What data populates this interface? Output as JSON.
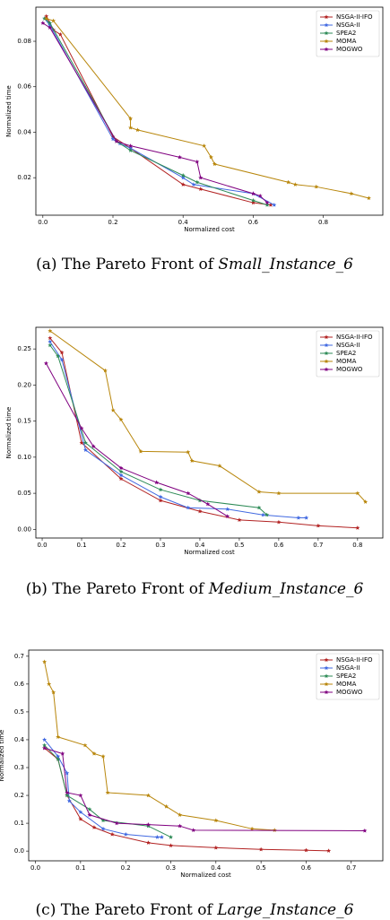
{
  "chart_data": [
    {
      "type": "line",
      "caption_prefix": "(a) The Pareto Front of",
      "caption_instance": "Small_Instance_6",
      "x_label": "Normalized cost",
      "y_label": "Normalized time",
      "legend": "upper right",
      "xlim": [
        -0.02,
        0.97
      ],
      "ylim": [
        0.0035,
        0.095
      ],
      "xticks": [
        {
          "value": 0,
          "label": "0.0"
        },
        0.2,
        0.4,
        0.6,
        0.8
      ],
      "yticks": [
        0.02,
        0.04,
        0.06,
        0.08
      ],
      "series": [
        {
          "name": "NSGA-II-IFO",
          "color": "#b22222",
          "x": [
            0.01,
            0.03,
            0.05,
            0.2,
            0.25,
            0.4,
            0.45,
            0.6,
            0.65
          ],
          "values": [
            0.091,
            0.085,
            0.083,
            0.038,
            0.033,
            0.017,
            0.015,
            0.009,
            0.008
          ]
        },
        {
          "name": "NSGA-II",
          "color": "#4169e1",
          "x": [
            0.005,
            0.02,
            0.2,
            0.22,
            0.25,
            0.4,
            0.43,
            0.6,
            0.66
          ],
          "values": [
            0.09,
            0.087,
            0.037,
            0.035,
            0.033,
            0.02,
            0.017,
            0.013,
            0.008
          ]
        },
        {
          "name": "SPEA2",
          "color": "#2e8b57",
          "x": [
            0.005,
            0.02,
            0.21,
            0.25,
            0.4,
            0.44,
            0.6,
            0.64
          ],
          "values": [
            0.09,
            0.088,
            0.036,
            0.032,
            0.021,
            0.018,
            0.01,
            0.008
          ]
        },
        {
          "name": "MOMA",
          "color": "#b8860b",
          "x": [
            0.01,
            0.03,
            0.25,
            0.25,
            0.27,
            0.46,
            0.48,
            0.49,
            0.7,
            0.72,
            0.78,
            0.88,
            0.93
          ],
          "values": [
            0.09,
            0.089,
            0.046,
            0.042,
            0.041,
            0.034,
            0.029,
            0.026,
            0.018,
            0.017,
            0.016,
            0.013,
            0.011
          ]
        },
        {
          "name": "MOGWO",
          "color": "#800080",
          "x": [
            0.0,
            0.02,
            0.21,
            0.25,
            0.39,
            0.44,
            0.45,
            0.6,
            0.62,
            0.64
          ],
          "values": [
            0.088,
            0.086,
            0.036,
            0.034,
            0.029,
            0.027,
            0.02,
            0.013,
            0.012,
            0.009
          ]
        }
      ]
    },
    {
      "type": "line",
      "caption_prefix": "(b) The Pareto Front of",
      "caption_instance": "Medium_Instance_6",
      "x_label": "Normalized cost",
      "y_label": "Normalized time",
      "legend": "upper right",
      "xlim": [
        -0.016,
        0.864
      ],
      "ylim": [
        -0.012,
        0.28
      ],
      "xticks": [
        {
          "value": 0,
          "label": "0.0"
        },
        0.1,
        0.2,
        0.3,
        0.4,
        0.5,
        0.6,
        0.7,
        0.8
      ],
      "yticks": [
        {
          "value": 0,
          "label": "0.00"
        },
        0.05,
        {
          "value": 0.1,
          "label": "0.10"
        },
        0.15,
        {
          "value": 0.2,
          "label": "0.20"
        },
        0.25
      ],
      "series": [
        {
          "name": "NSGA-II-IFO",
          "color": "#b22222",
          "x": [
            0.02,
            0.05,
            0.1,
            0.2,
            0.3,
            0.4,
            0.5,
            0.6,
            0.7,
            0.8
          ],
          "values": [
            0.265,
            0.245,
            0.12,
            0.07,
            0.04,
            0.025,
            0.013,
            0.01,
            0.005,
            0.002
          ]
        },
        {
          "name": "NSGA-II",
          "color": "#4169e1",
          "x": [
            0.02,
            0.05,
            0.11,
            0.2,
            0.3,
            0.37,
            0.47,
            0.56,
            0.65,
            0.67
          ],
          "values": [
            0.26,
            0.235,
            0.11,
            0.075,
            0.045,
            0.03,
            0.028,
            0.02,
            0.016,
            0.016
          ]
        },
        {
          "name": "SPEA2",
          "color": "#2e8b57",
          "x": [
            0.02,
            0.04,
            0.11,
            0.2,
            0.3,
            0.4,
            0.55,
            0.57
          ],
          "values": [
            0.255,
            0.24,
            0.12,
            0.08,
            0.055,
            0.04,
            0.03,
            0.02
          ]
        },
        {
          "name": "MOMA",
          "color": "#b8860b",
          "x": [
            0.02,
            0.16,
            0.18,
            0.2,
            0.25,
            0.37,
            0.38,
            0.45,
            0.55,
            0.6,
            0.8,
            0.82
          ],
          "values": [
            0.275,
            0.22,
            0.165,
            0.152,
            0.108,
            0.107,
            0.095,
            0.088,
            0.052,
            0.05,
            0.05,
            0.038
          ]
        },
        {
          "name": "MOGWO",
          "color": "#800080",
          "x": [
            0.01,
            0.1,
            0.13,
            0.2,
            0.29,
            0.37,
            0.42,
            0.47
          ],
          "values": [
            0.23,
            0.14,
            0.115,
            0.085,
            0.065,
            0.05,
            0.035,
            0.018
          ]
        }
      ]
    },
    {
      "type": "line",
      "caption_prefix": "(c) The Pareto Front of",
      "caption_instance": "Large_Instance_6",
      "x_label": "Normalized cost",
      "y_label": "Normalized time",
      "legend": "upper right",
      "xlim": [
        -0.015,
        0.77
      ],
      "ylim": [
        -0.035,
        0.722
      ],
      "xticks": [
        {
          "value": 0,
          "label": "0.0"
        },
        0.1,
        0.2,
        0.3,
        0.4,
        0.5,
        0.6,
        0.7
      ],
      "yticks": [
        {
          "value": 0,
          "label": "0.0"
        },
        0.1,
        0.2,
        0.3,
        0.4,
        0.5,
        0.6,
        0.7
      ],
      "series": [
        {
          "name": "NSGA-II-IFO",
          "color": "#b22222",
          "x": [
            0.02,
            0.05,
            0.07,
            0.1,
            0.13,
            0.17,
            0.25,
            0.3,
            0.4,
            0.5,
            0.6,
            0.65
          ],
          "values": [
            0.37,
            0.33,
            0.2,
            0.115,
            0.085,
            0.06,
            0.03,
            0.02,
            0.012,
            0.006,
            0.003,
            0.001
          ]
        },
        {
          "name": "NSGA-II",
          "color": "#4169e1",
          "x": [
            0.02,
            0.05,
            0.07,
            0.075,
            0.1,
            0.15,
            0.2,
            0.27,
            0.28
          ],
          "values": [
            0.4,
            0.34,
            0.28,
            0.18,
            0.14,
            0.08,
            0.06,
            0.05,
            0.05
          ]
        },
        {
          "name": "SPEA2",
          "color": "#2e8b57",
          "x": [
            0.02,
            0.05,
            0.07,
            0.12,
            0.15,
            0.25,
            0.3
          ],
          "values": [
            0.38,
            0.33,
            0.2,
            0.15,
            0.11,
            0.09,
            0.05
          ]
        },
        {
          "name": "MOMA",
          "color": "#b8860b",
          "x": [
            0.02,
            0.03,
            0.04,
            0.05,
            0.11,
            0.13,
            0.15,
            0.16,
            0.25,
            0.29,
            0.32,
            0.4,
            0.48,
            0.53
          ],
          "values": [
            0.68,
            0.6,
            0.57,
            0.41,
            0.38,
            0.35,
            0.34,
            0.21,
            0.2,
            0.16,
            0.13,
            0.11,
            0.08,
            0.075
          ]
        },
        {
          "name": "MOGWO",
          "color": "#800080",
          "x": [
            0.02,
            0.06,
            0.07,
            0.1,
            0.12,
            0.18,
            0.25,
            0.32,
            0.35,
            0.73
          ],
          "values": [
            0.37,
            0.35,
            0.21,
            0.2,
            0.13,
            0.1,
            0.095,
            0.09,
            0.075,
            0.073
          ]
        }
      ]
    }
  ]
}
